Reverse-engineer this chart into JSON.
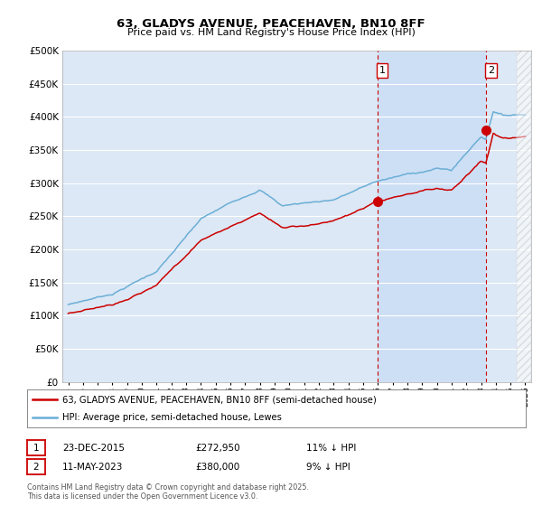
{
  "title": "63, GLADYS AVENUE, PEACEHAVEN, BN10 8FF",
  "subtitle": "Price paid vs. HM Land Registry's House Price Index (HPI)",
  "ylim": [
    0,
    500000
  ],
  "yticks": [
    0,
    50000,
    100000,
    150000,
    200000,
    250000,
    300000,
    350000,
    400000,
    450000,
    500000
  ],
  "purchase1_year": 2015.97,
  "purchase1_price": 272950,
  "purchase2_year": 2023.36,
  "purchase2_price": 380000,
  "legend_line1": "63, GLADYS AVENUE, PEACEHAVEN, BN10 8FF (semi-detached house)",
  "legend_line2": "HPI: Average price, semi-detached house, Lewes",
  "table_row1": [
    "1",
    "23-DEC-2015",
    "£272,950",
    "11% ↓ HPI"
  ],
  "table_row2": [
    "2",
    "11-MAY-2023",
    "£380,000",
    "9% ↓ HPI"
  ],
  "footer": "Contains HM Land Registry data © Crown copyright and database right 2025.\nThis data is licensed under the Open Government Licence v3.0.",
  "hpi_color": "#6baed6",
  "price_color": "#cc0000",
  "vline_color": "#cc0000",
  "bg_color": "#dce8f5",
  "highlight_color": "#ccdff5",
  "grid_color": "#ffffff",
  "future_hatch_color": "#cccccc"
}
